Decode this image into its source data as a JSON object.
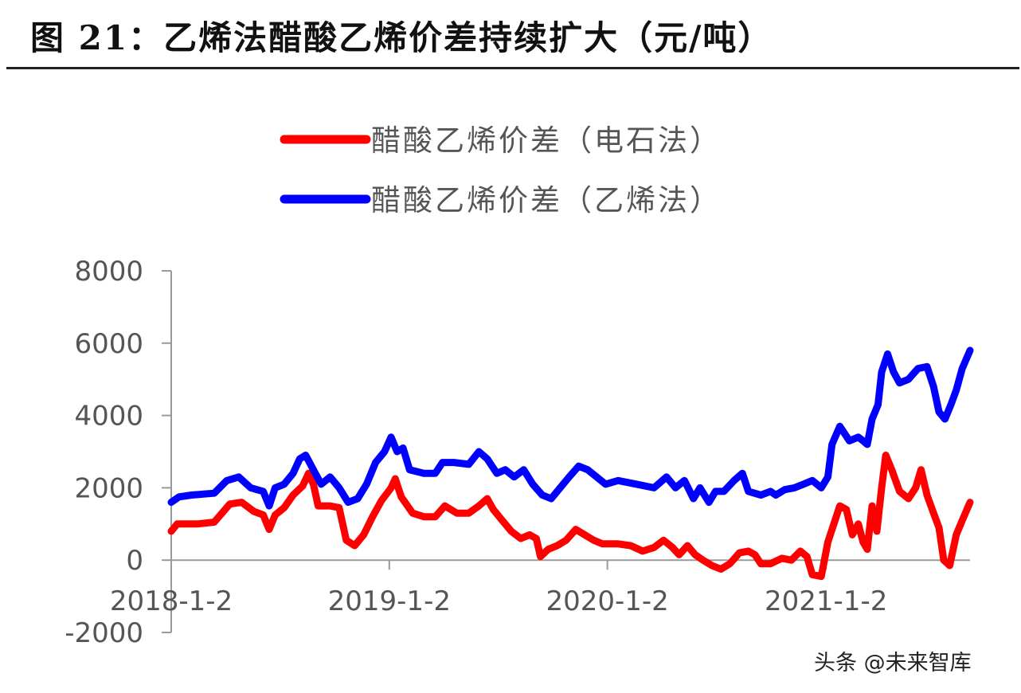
{
  "figure": {
    "title": "图 21：乙烯法醋酸乙烯价差持续扩大（元/吨）"
  },
  "watermark": "头条 @未来智库",
  "colors": {
    "series_red": "#ff0000",
    "series_blue": "#0000ff",
    "axis": "#9a9a9a"
  },
  "chart_data": {
    "type": "line",
    "title": "",
    "xlabel": "",
    "ylabel": "",
    "ylim": [
      -2000,
      8000
    ],
    "yticks": [
      -2000,
      0,
      2000,
      4000,
      6000,
      8000
    ],
    "xlim": [
      "2018-01-02",
      "2021-08-31"
    ],
    "xticks": [
      "2018-1-2",
      "2019-1-2",
      "2020-1-2",
      "2021-1-2"
    ],
    "legend_position": "top-center",
    "grid": false,
    "series": [
      {
        "name": "醋酸乙烯价差（电石法）",
        "color": "#ff0000",
        "points": [
          [
            "2018-01-02",
            800
          ],
          [
            "2018-01-12",
            1000
          ],
          [
            "2018-02-15",
            1000
          ],
          [
            "2018-03-15",
            1050
          ],
          [
            "2018-04-10",
            1550
          ],
          [
            "2018-04-30",
            1600
          ],
          [
            "2018-05-20",
            1350
          ],
          [
            "2018-06-05",
            1250
          ],
          [
            "2018-06-15",
            850
          ],
          [
            "2018-06-25",
            1250
          ],
          [
            "2018-07-10",
            1450
          ],
          [
            "2018-07-25",
            1800
          ],
          [
            "2018-08-10",
            2050
          ],
          [
            "2018-08-20",
            2400
          ],
          [
            "2018-08-28",
            2100
          ],
          [
            "2018-09-05",
            1500
          ],
          [
            "2018-09-25",
            1500
          ],
          [
            "2018-10-10",
            1450
          ],
          [
            "2018-10-22",
            550
          ],
          [
            "2018-11-05",
            400
          ],
          [
            "2018-11-20",
            700
          ],
          [
            "2018-12-05",
            1200
          ],
          [
            "2018-12-20",
            1650
          ],
          [
            "2019-01-05",
            2000
          ],
          [
            "2019-01-12",
            2250
          ],
          [
            "2019-01-22",
            1750
          ],
          [
            "2019-02-10",
            1300
          ],
          [
            "2019-03-01",
            1200
          ],
          [
            "2019-03-20",
            1200
          ],
          [
            "2019-04-05",
            1500
          ],
          [
            "2019-04-25",
            1300
          ],
          [
            "2019-05-15",
            1300
          ],
          [
            "2019-06-01",
            1500
          ],
          [
            "2019-06-15",
            1700
          ],
          [
            "2019-06-25",
            1400
          ],
          [
            "2019-07-10",
            1100
          ],
          [
            "2019-07-25",
            800
          ],
          [
            "2019-08-10",
            600
          ],
          [
            "2019-08-25",
            700
          ],
          [
            "2019-09-05",
            600
          ],
          [
            "2019-09-12",
            100
          ],
          [
            "2019-09-25",
            300
          ],
          [
            "2019-10-10",
            400
          ],
          [
            "2019-10-25",
            550
          ],
          [
            "2019-11-10",
            850
          ],
          [
            "2019-11-25",
            700
          ],
          [
            "2019-12-10",
            550
          ],
          [
            "2019-12-25",
            450
          ],
          [
            "2020-01-20",
            450
          ],
          [
            "2020-02-10",
            400
          ],
          [
            "2020-03-01",
            250
          ],
          [
            "2020-03-20",
            350
          ],
          [
            "2020-04-05",
            550
          ],
          [
            "2020-04-20",
            350
          ],
          [
            "2020-05-01",
            150
          ],
          [
            "2020-05-15",
            400
          ],
          [
            "2020-05-28",
            150
          ],
          [
            "2020-06-10",
            0
          ],
          [
            "2020-06-25",
            -150
          ],
          [
            "2020-07-10",
            -250
          ],
          [
            "2020-07-25",
            -100
          ],
          [
            "2020-08-10",
            200
          ],
          [
            "2020-08-25",
            250
          ],
          [
            "2020-09-05",
            150
          ],
          [
            "2020-09-15",
            -100
          ],
          [
            "2020-10-01",
            -100
          ],
          [
            "2020-10-20",
            50
          ],
          [
            "2020-11-05",
            0
          ],
          [
            "2020-11-20",
            250
          ],
          [
            "2020-12-01",
            100
          ],
          [
            "2020-12-10",
            -400
          ],
          [
            "2020-12-25",
            -450
          ],
          [
            "2021-01-05",
            500
          ],
          [
            "2021-01-15",
            1000
          ],
          [
            "2021-01-25",
            1500
          ],
          [
            "2021-02-05",
            1400
          ],
          [
            "2021-02-15",
            700
          ],
          [
            "2021-02-25",
            1000
          ],
          [
            "2021-03-05",
            500
          ],
          [
            "2021-03-12",
            300
          ],
          [
            "2021-03-20",
            1500
          ],
          [
            "2021-03-28",
            800
          ],
          [
            "2021-04-05",
            2000
          ],
          [
            "2021-04-12",
            2900
          ],
          [
            "2021-04-22",
            2500
          ],
          [
            "2021-05-05",
            1900
          ],
          [
            "2021-05-20",
            1700
          ],
          [
            "2021-06-01",
            2000
          ],
          [
            "2021-06-10",
            2500
          ],
          [
            "2021-06-20",
            1800
          ],
          [
            "2021-07-01",
            1300
          ],
          [
            "2021-07-10",
            900
          ],
          [
            "2021-07-18",
            0
          ],
          [
            "2021-07-28",
            -150
          ],
          [
            "2021-08-08",
            700
          ],
          [
            "2021-08-18",
            1100
          ],
          [
            "2021-08-31",
            1600
          ]
        ]
      },
      {
        "name": "醋酸乙烯价差（乙烯法）",
        "color": "#0000ff",
        "points": [
          [
            "2018-01-02",
            1600
          ],
          [
            "2018-01-15",
            1750
          ],
          [
            "2018-02-05",
            1800
          ],
          [
            "2018-03-15",
            1850
          ],
          [
            "2018-04-05",
            2200
          ],
          [
            "2018-04-25",
            2300
          ],
          [
            "2018-05-15",
            2000
          ],
          [
            "2018-06-05",
            1900
          ],
          [
            "2018-06-15",
            1500
          ],
          [
            "2018-06-25",
            2000
          ],
          [
            "2018-07-10",
            2100
          ],
          [
            "2018-07-25",
            2400
          ],
          [
            "2018-08-05",
            2800
          ],
          [
            "2018-08-15",
            2900
          ],
          [
            "2018-08-28",
            2500
          ],
          [
            "2018-09-10",
            2100
          ],
          [
            "2018-09-25",
            2300
          ],
          [
            "2018-10-10",
            2000
          ],
          [
            "2018-10-25",
            1600
          ],
          [
            "2018-11-10",
            1700
          ],
          [
            "2018-11-25",
            2100
          ],
          [
            "2018-12-10",
            2700
          ],
          [
            "2018-12-25",
            3000
          ],
          [
            "2019-01-05",
            3400
          ],
          [
            "2019-01-15",
            3000
          ],
          [
            "2019-01-25",
            3100
          ],
          [
            "2019-02-05",
            2500
          ],
          [
            "2019-03-01",
            2400
          ],
          [
            "2019-03-20",
            2400
          ],
          [
            "2019-04-01",
            2700
          ],
          [
            "2019-04-20",
            2700
          ],
          [
            "2019-05-15",
            2650
          ],
          [
            "2019-06-01",
            3000
          ],
          [
            "2019-06-15",
            2800
          ],
          [
            "2019-07-01",
            2400
          ],
          [
            "2019-07-15",
            2500
          ],
          [
            "2019-07-30",
            2300
          ],
          [
            "2019-08-15",
            2500
          ],
          [
            "2019-08-30",
            2100
          ],
          [
            "2019-09-15",
            1800
          ],
          [
            "2019-09-30",
            1700
          ],
          [
            "2019-10-15",
            2000
          ],
          [
            "2019-10-30",
            2300
          ],
          [
            "2019-11-15",
            2600
          ],
          [
            "2019-11-30",
            2500
          ],
          [
            "2019-12-15",
            2300
          ],
          [
            "2019-12-30",
            2100
          ],
          [
            "2020-01-20",
            2200
          ],
          [
            "2020-02-20",
            2100
          ],
          [
            "2020-03-20",
            2000
          ],
          [
            "2020-04-10",
            2300
          ],
          [
            "2020-04-25",
            2000
          ],
          [
            "2020-05-10",
            2200
          ],
          [
            "2020-05-25",
            1700
          ],
          [
            "2020-06-05",
            2000
          ],
          [
            "2020-06-20",
            1600
          ],
          [
            "2020-07-01",
            1900
          ],
          [
            "2020-07-15",
            1900
          ],
          [
            "2020-08-01",
            2200
          ],
          [
            "2020-08-15",
            2400
          ],
          [
            "2020-08-25",
            1900
          ],
          [
            "2020-09-15",
            1800
          ],
          [
            "2020-10-01",
            1900
          ],
          [
            "2020-10-10",
            1800
          ],
          [
            "2020-10-25",
            1950
          ],
          [
            "2020-11-10",
            2000
          ],
          [
            "2020-11-25",
            2100
          ],
          [
            "2020-12-10",
            2200
          ],
          [
            "2020-12-25",
            2000
          ],
          [
            "2021-01-05",
            2300
          ],
          [
            "2021-01-12",
            3200
          ],
          [
            "2021-01-25",
            3700
          ],
          [
            "2021-02-10",
            3300
          ],
          [
            "2021-02-25",
            3400
          ],
          [
            "2021-03-05",
            3300
          ],
          [
            "2021-03-12",
            3200
          ],
          [
            "2021-03-20",
            3900
          ],
          [
            "2021-03-30",
            4300
          ],
          [
            "2021-04-05",
            5200
          ],
          [
            "2021-04-15",
            5700
          ],
          [
            "2021-04-25",
            5200
          ],
          [
            "2021-05-05",
            4900
          ],
          [
            "2021-05-20",
            5000
          ],
          [
            "2021-06-05",
            5300
          ],
          [
            "2021-06-20",
            5350
          ],
          [
            "2021-07-01",
            4800
          ],
          [
            "2021-07-10",
            4100
          ],
          [
            "2021-07-20",
            3900
          ],
          [
            "2021-07-30",
            4300
          ],
          [
            "2021-08-08",
            4700
          ],
          [
            "2021-08-18",
            5300
          ],
          [
            "2021-08-31",
            5800
          ]
        ]
      }
    ]
  }
}
